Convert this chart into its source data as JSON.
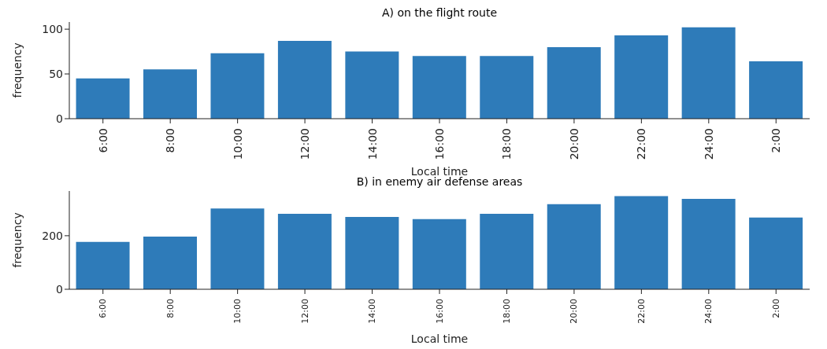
{
  "chart_data": [
    {
      "type": "bar",
      "title": "A) on the flight route",
      "xlabel": "Local time",
      "ylabel": "frequency",
      "categories": [
        "6:00",
        "8:00",
        "10:00",
        "12:00",
        "14:00",
        "16:00",
        "18:00",
        "20:00",
        "22:00",
        "24:00",
        "2:00"
      ],
      "values": [
        45,
        55,
        73,
        87,
        75,
        70,
        70,
        80,
        93,
        102,
        64
      ],
      "color": "#2e7bb9",
      "ylim": [
        0,
        108
      ],
      "yticks": [
        0,
        50,
        100
      ],
      "grid": false,
      "legend": false
    },
    {
      "type": "bar",
      "title": "B) in enemy air defense areas",
      "xlabel": "Local time",
      "ylabel": "frequency",
      "categories": [
        "6:00",
        "8:00",
        "10:00",
        "12:00",
        "14:00",
        "16:00",
        "18:00",
        "20:00",
        "22:00",
        "24:00",
        "2:00"
      ],
      "values": [
        177,
        197,
        302,
        282,
        270,
        262,
        282,
        318,
        348,
        338,
        268
      ],
      "color": "#2e7bb9",
      "ylim": [
        0,
        367
      ],
      "yticks": [
        0,
        200
      ],
      "grid": false,
      "legend": false
    }
  ]
}
